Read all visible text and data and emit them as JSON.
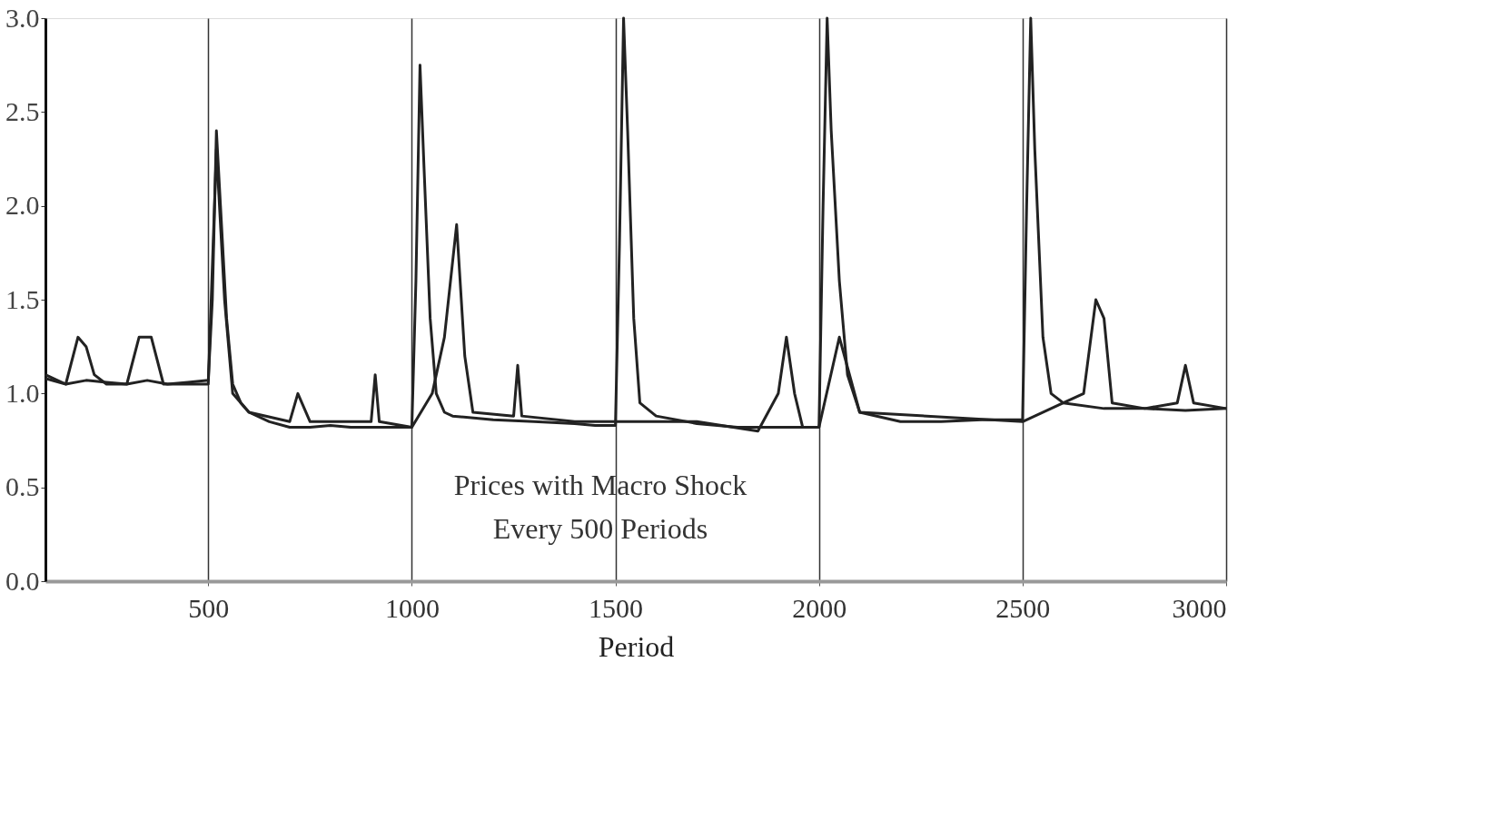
{
  "chart_data": {
    "type": "line",
    "xlabel": "Period",
    "annotations": [
      "Prices with Macro Shock",
      "Every 500 Periods"
    ],
    "xlim": [
      100,
      3000
    ],
    "xticks": [
      500,
      1000,
      1500,
      2000,
      2500,
      3000
    ],
    "ylim": [
      0,
      3
    ],
    "yticks": [
      {
        "value": 0,
        "label": "0.0"
      },
      {
        "value": 0.5,
        "label": "0.5"
      },
      {
        "value": 1,
        "label": "1.0"
      },
      {
        "value": 1.5,
        "label": "1.5"
      },
      {
        "value": 2,
        "label": "2.0"
      },
      {
        "value": 2.5,
        "label": "2.5"
      },
      {
        "value": 3,
        "label": "3.0"
      }
    ],
    "grid": "x",
    "marker": "none",
    "line_style": "solid",
    "series": [
      {
        "color": "#222222",
        "x": [
          100,
          150,
          200,
          250,
          300,
          350,
          400,
          450,
          500,
          510,
          520,
          530,
          545,
          560,
          580,
          600,
          650,
          700,
          750,
          800,
          850,
          900,
          950,
          1000,
          1010,
          1020,
          1030,
          1045,
          1060,
          1080,
          1100,
          1200,
          1300,
          1400,
          1450,
          1500,
          1510,
          1520,
          1530,
          1545,
          1560,
          1600,
          1700,
          1800,
          1900,
          2000,
          2010,
          2020,
          2030,
          2050,
          2070,
          2100,
          2200,
          2300,
          2400,
          2500,
          2510,
          2520,
          2530,
          2550,
          2570,
          2600,
          2700,
          2800,
          2900,
          3000
        ],
        "values": [
          1.08,
          1.05,
          1.07,
          1.06,
          1.05,
          1.07,
          1.05,
          1.06,
          1.07,
          1.5,
          2.4,
          2.0,
          1.4,
          1.05,
          0.95,
          0.9,
          0.85,
          0.82,
          0.82,
          0.83,
          0.82,
          0.82,
          0.82,
          0.82,
          1.6,
          2.75,
          2.2,
          1.4,
          1.0,
          0.9,
          0.88,
          0.86,
          0.85,
          0.84,
          0.83,
          0.83,
          1.8,
          3.0,
          2.4,
          1.4,
          0.95,
          0.88,
          0.84,
          0.82,
          0.82,
          0.82,
          2.0,
          3.0,
          2.4,
          1.6,
          1.1,
          0.9,
          0.85,
          0.85,
          0.86,
          0.86,
          2.0,
          3.0,
          2.3,
          1.3,
          1.0,
          0.95,
          0.92,
          0.92,
          0.91,
          0.92
        ]
      },
      {
        "color": "#222222",
        "x": [
          100,
          150,
          180,
          200,
          220,
          250,
          300,
          330,
          360,
          390,
          420,
          500,
          520,
          540,
          560,
          600,
          700,
          720,
          750,
          900,
          910,
          920,
          1000,
          1050,
          1080,
          1110,
          1130,
          1150,
          1250,
          1260,
          1270,
          1400,
          1700,
          1850,
          1900,
          1920,
          1940,
          1960,
          2000,
          2050,
          2100,
          2500,
          2600,
          2650,
          2680,
          2700,
          2720,
          2800,
          2880,
          2900,
          2920,
          3000
        ],
        "values": [
          1.1,
          1.05,
          1.3,
          1.25,
          1.1,
          1.05,
          1.05,
          1.3,
          1.3,
          1.05,
          1.05,
          1.05,
          2.3,
          1.5,
          1.0,
          0.9,
          0.85,
          1.0,
          0.85,
          0.85,
          1.1,
          0.85,
          0.82,
          1.0,
          1.3,
          1.9,
          1.2,
          0.9,
          0.88,
          1.15,
          0.88,
          0.85,
          0.85,
          0.8,
          1.0,
          1.3,
          1.0,
          0.82,
          0.82,
          1.3,
          0.9,
          0.85,
          0.95,
          1.0,
          1.5,
          1.4,
          0.95,
          0.92,
          0.95,
          1.15,
          0.95,
          0.92
        ]
      }
    ]
  }
}
